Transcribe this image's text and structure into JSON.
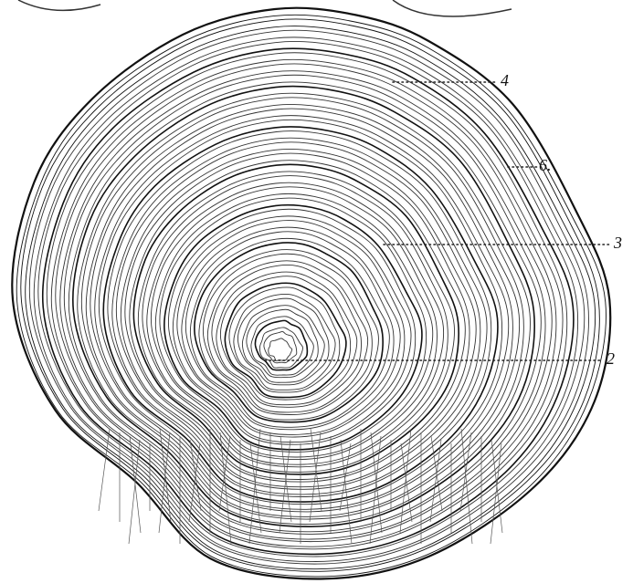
{
  "labels": [
    {
      "text": "4"
    },
    {
      "text": "6."
    },
    {
      "text": "3"
    },
    {
      "text": "2"
    }
  ]
}
